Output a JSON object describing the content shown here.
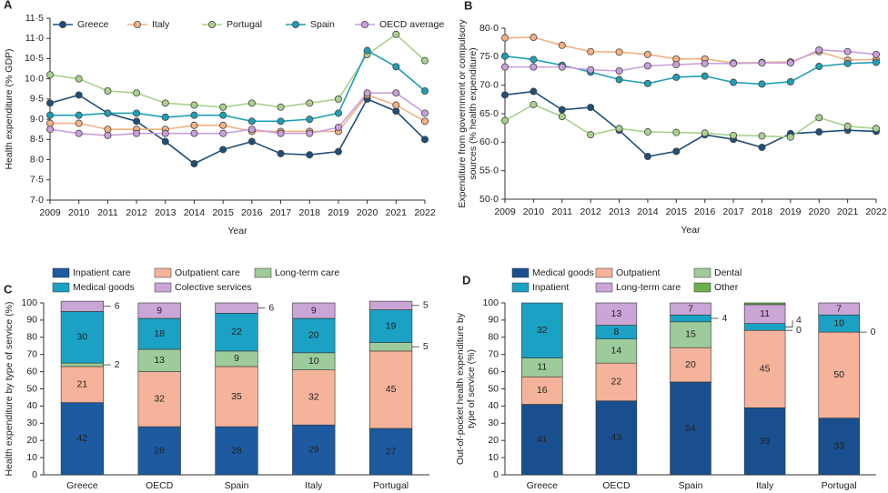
{
  "chart_data": [
    {
      "type": "line",
      "panel": "A",
      "y_label": [
        "Health expenditure (% GDP)"
      ],
      "x_label": "Year",
      "x": [
        2009,
        2010,
        2011,
        2012,
        2013,
        2014,
        2015,
        2016,
        2017,
        2018,
        2019,
        2020,
        2021,
        2022
      ],
      "xlim": [
        2009,
        2022
      ],
      "xticks": [
        2009,
        2010,
        2011,
        2012,
        2013,
        2014,
        2015,
        2016,
        2017,
        2018,
        2019,
        2020,
        2021,
        2022
      ],
      "ylim": [
        7.0,
        11.5
      ],
      "yticks": [
        {
          "value": 7.0,
          "label": "7·0"
        },
        {
          "value": 7.5,
          "label": "7·5"
        },
        {
          "value": 8.0,
          "label": "8·0"
        },
        {
          "value": 8.5,
          "label": "8·5"
        },
        {
          "value": 9.0,
          "label": "9·0"
        },
        {
          "value": 9.5,
          "label": "9·5"
        },
        {
          "value": 10.0,
          "label": "10·0"
        },
        {
          "value": 10.5,
          "label": "10·5"
        },
        {
          "value": 11.0,
          "label": "11·0"
        },
        {
          "value": 11.5,
          "label": "11·5"
        }
      ],
      "series": [
        {
          "name": "Greece",
          "color": "#1f4e79",
          "values": [
            9.4,
            9.6,
            9.15,
            8.95,
            8.45,
            7.9,
            8.25,
            8.45,
            8.15,
            8.12,
            8.2,
            9.5,
            9.2,
            8.5
          ]
        },
        {
          "name": "Italy",
          "color": "#f4b183",
          "values": [
            8.9,
            8.9,
            8.75,
            8.75,
            8.75,
            8.85,
            8.85,
            8.7,
            8.7,
            8.7,
            8.7,
            9.6,
            9.35,
            8.95
          ]
        },
        {
          "name": "Portugal",
          "color": "#a9d18e",
          "values": [
            10.1,
            10.0,
            9.7,
            9.65,
            9.4,
            9.35,
            9.3,
            9.4,
            9.3,
            9.4,
            9.5,
            10.6,
            11.1,
            10.45
          ]
        },
        {
          "name": "Spain",
          "color": "#1f9fb5",
          "values": [
            9.1,
            9.1,
            9.15,
            9.15,
            9.05,
            9.1,
            9.1,
            8.95,
            8.95,
            9.0,
            9.15,
            10.7,
            10.3,
            9.7
          ]
        },
        {
          "name": "OECD average",
          "color": "#c9a0dc",
          "values": [
            8.75,
            8.65,
            8.6,
            8.65,
            8.65,
            8.65,
            8.65,
            8.75,
            8.65,
            8.65,
            8.8,
            9.65,
            9.65,
            9.15
          ]
        }
      ]
    },
    {
      "type": "line",
      "panel": "B",
      "y_label": [
        "Expenditure from government or compulsory",
        "sources (% health expenditure)"
      ],
      "x_label": "Year",
      "x": [
        2009,
        2010,
        2011,
        2012,
        2013,
        2014,
        2015,
        2016,
        2017,
        2018,
        2019,
        2020,
        2021,
        2022
      ],
      "xlim": [
        2009,
        2022
      ],
      "xticks": [
        2009,
        2010,
        2011,
        2012,
        2013,
        2014,
        2015,
        2016,
        2017,
        2018,
        2019,
        2020,
        2021,
        2022
      ],
      "ylim": [
        50.0,
        80.0
      ],
      "yticks": [
        {
          "value": 50.0,
          "label": "50·0"
        },
        {
          "value": 55.0,
          "label": "55·0"
        },
        {
          "value": 60.0,
          "label": "60·0"
        },
        {
          "value": 65.0,
          "label": "65·0"
        },
        {
          "value": 70.0,
          "label": "70·0"
        },
        {
          "value": 75.0,
          "label": "75·0"
        },
        {
          "value": 80.0,
          "label": "80·0"
        }
      ],
      "series": [
        {
          "name": "Greece",
          "color": "#1f4e79",
          "values": [
            68.3,
            68.9,
            65.7,
            66.1,
            62.1,
            57.5,
            58.4,
            61.3,
            60.5,
            59.1,
            61.5,
            61.8,
            62.1,
            61.9
          ]
        },
        {
          "name": "Italy",
          "color": "#f4b183",
          "values": [
            78.3,
            78.4,
            77.0,
            75.9,
            75.8,
            75.4,
            74.6,
            74.6,
            73.9,
            74.0,
            74.1,
            75.9,
            74.4,
            74.5
          ]
        },
        {
          "name": "Portugal",
          "color": "#a9d18e",
          "values": [
            63.8,
            66.6,
            64.5,
            61.3,
            62.4,
            61.8,
            61.7,
            61.6,
            61.2,
            61.1,
            60.9,
            64.3,
            62.8,
            62.4
          ]
        },
        {
          "name": "Spain",
          "color": "#1f9fb5",
          "values": [
            75.1,
            74.5,
            73.5,
            72.3,
            71.0,
            70.3,
            71.4,
            71.6,
            70.5,
            70.2,
            70.6,
            73.3,
            73.8,
            74.0
          ]
        },
        {
          "name": "OECD average",
          "color": "#c9a0dc",
          "values": [
            73.2,
            73.2,
            73.2,
            72.7,
            72.5,
            73.4,
            73.6,
            73.8,
            73.8,
            73.9,
            73.9,
            76.2,
            75.9,
            75.4
          ]
        }
      ]
    },
    {
      "type": "stacked_bar",
      "panel": "C",
      "y_label": [
        "Health expenditure by type of service (%)"
      ],
      "categories": [
        "Greece",
        "OECD",
        "Spain",
        "Italy",
        "Portugal"
      ],
      "ylim": [
        0,
        100
      ],
      "yticks": [
        0,
        10,
        20,
        30,
        40,
        50,
        60,
        70,
        80,
        90,
        100
      ],
      "series": [
        {
          "name": "Inpatient care",
          "color": "#1d5aa0",
          "values": [
            42,
            28,
            28,
            29,
            27
          ]
        },
        {
          "name": "Outpatient care",
          "color": "#f4b39a",
          "values": [
            21,
            32,
            35,
            32,
            45
          ]
        },
        {
          "name": "Long-term care",
          "color": "#9ecb9c",
          "values": [
            2,
            13,
            9,
            10,
            5
          ]
        },
        {
          "name": "Medical goods",
          "color": "#1ba1c4",
          "values": [
            30,
            18,
            22,
            20,
            19
          ]
        },
        {
          "name": "Colective services",
          "color": "#c9a6d6",
          "values": [
            6,
            9,
            6,
            9,
            5
          ]
        }
      ]
    },
    {
      "type": "stacked_bar",
      "panel": "D",
      "y_label": [
        "Out-of-pocket health expenditure by",
        "type of service (%)"
      ],
      "categories": [
        "Greece",
        "OECD",
        "Spain",
        "Italy",
        "Portugal"
      ],
      "ylim": [
        0,
        100
      ],
      "yticks": [
        0,
        10,
        20,
        30,
        40,
        50,
        60,
        70,
        80,
        90,
        100
      ],
      "series": [
        {
          "name": "Medical goods",
          "color": "#1a4f8f",
          "values": [
            41,
            43,
            54,
            39,
            33
          ],
          "value_labels": [
            "41",
            "43",
            "54",
            "39",
            "33"
          ]
        },
        {
          "name": "Outpatient",
          "color": "#f4b39a",
          "values": [
            16,
            22,
            20,
            45,
            50
          ],
          "value_labels": [
            "16",
            "22",
            "20",
            "45",
            "50"
          ]
        },
        {
          "name": "Dental",
          "color": "#9ecb9c",
          "values": [
            11,
            14,
            15,
            0,
            0
          ],
          "value_labels": [
            "11",
            "14",
            "15",
            "0",
            "0"
          ]
        },
        {
          "name": "Inpatient",
          "color": "#1ba1c4",
          "values": [
            32,
            8,
            4,
            4,
            10
          ],
          "value_labels": [
            "32",
            "8",
            "4",
            "4",
            "10"
          ]
        },
        {
          "name": "Long-term care",
          "color": "#c9a6d6",
          "values": [
            0,
            13,
            7,
            11,
            7
          ],
          "value_labels": [
            null,
            "13",
            "7",
            "11",
            "7"
          ]
        },
        {
          "name": "Other",
          "color": "#6ab04c",
          "values": [
            0,
            0,
            0,
            1,
            0
          ],
          "value_labels": [
            null,
            null,
            null,
            null,
            null
          ]
        }
      ]
    }
  ]
}
